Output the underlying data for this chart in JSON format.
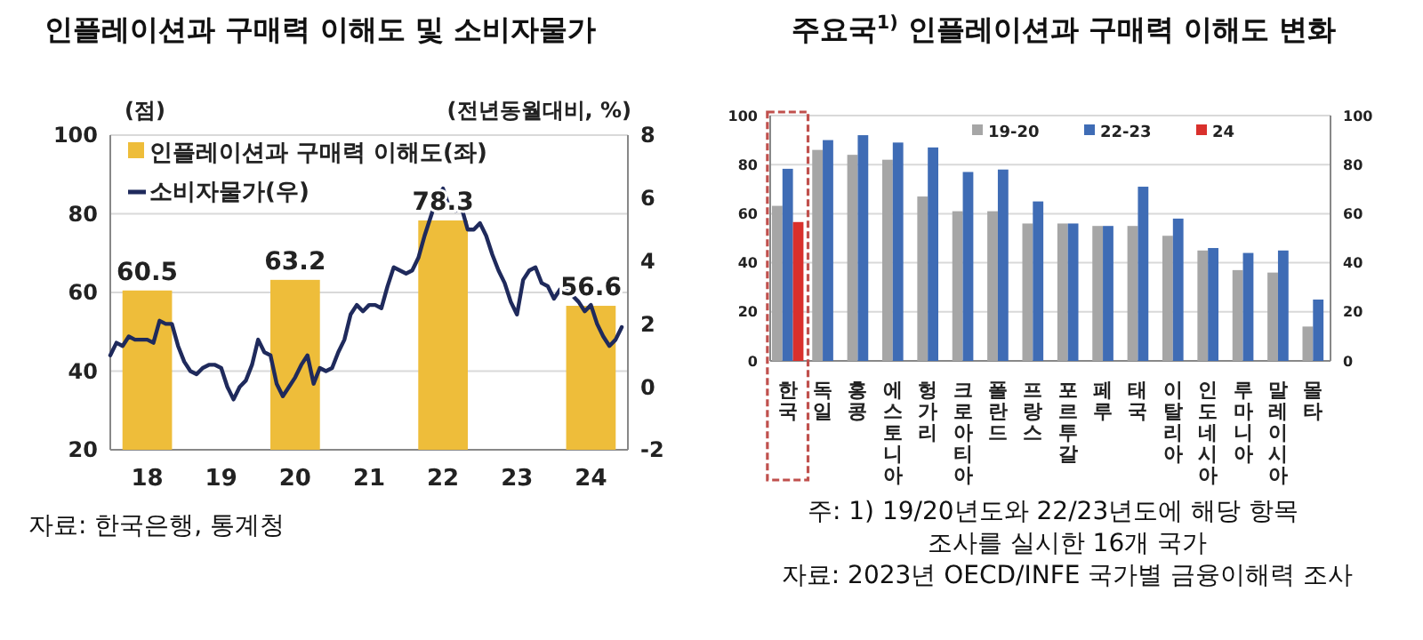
{
  "chart_data": [
    {
      "type": "bar",
      "title": "인플레이션과 구매력 이해도 및 소비자물가",
      "ylabel": "(점)",
      "y2label": "(전년동월대비, %)",
      "xlim": [
        "2018-01",
        "2025-01"
      ],
      "xticks": [
        {
          "value": "2018-07",
          "label": "18"
        },
        {
          "value": "2019-07",
          "label": "19"
        },
        {
          "value": "2020-07",
          "label": "20"
        },
        {
          "value": "2021-07",
          "label": "21"
        },
        {
          "value": "2022-07",
          "label": "22"
        },
        {
          "value": "2023-07",
          "label": "23"
        },
        {
          "value": "2024-07",
          "label": "24"
        }
      ],
      "ylim": [
        20,
        100
      ],
      "yticks": [
        20,
        40,
        60,
        80,
        100
      ],
      "y2lim": [
        -2,
        8
      ],
      "y2ticks": [
        -2,
        0,
        2,
        4,
        6,
        8
      ],
      "grid": "y",
      "legend": "top left",
      "series": [
        {
          "name": "인플레이션과 구매력 이해도(좌)",
          "type": "bar",
          "color": "#eebd3a",
          "x": [
            "2018-07",
            "2020-07",
            "2022-07",
            "2024-07"
          ],
          "values": [
            60.5,
            63.2,
            78.3,
            56.6
          ],
          "value_labels": [
            "60.5",
            "63.2",
            "78.3",
            "56.6"
          ]
        },
        {
          "name": "소비자물가(우)",
          "type": "line",
          "axis": "y2",
          "color": "#1f2a5c",
          "x": [
            "2018-01",
            "2018-02",
            "2018-03",
            "2018-04",
            "2018-05",
            "2018-06",
            "2018-07",
            "2018-08",
            "2018-09",
            "2018-10",
            "2018-11",
            "2018-12",
            "2019-01",
            "2019-02",
            "2019-03",
            "2019-04",
            "2019-05",
            "2019-06",
            "2019-07",
            "2019-08",
            "2019-09",
            "2019-10",
            "2019-11",
            "2019-12",
            "2020-01",
            "2020-02",
            "2020-03",
            "2020-04",
            "2020-05",
            "2020-06",
            "2020-07",
            "2020-08",
            "2020-09",
            "2020-10",
            "2020-11",
            "2020-12",
            "2021-01",
            "2021-02",
            "2021-03",
            "2021-04",
            "2021-05",
            "2021-06",
            "2021-07",
            "2021-08",
            "2021-09",
            "2021-10",
            "2021-11",
            "2021-12",
            "2022-01",
            "2022-02",
            "2022-03",
            "2022-04",
            "2022-05",
            "2022-06",
            "2022-07",
            "2022-08",
            "2022-09",
            "2022-10",
            "2022-11",
            "2022-12",
            "2023-01",
            "2023-02",
            "2023-03",
            "2023-04",
            "2023-05",
            "2023-06",
            "2023-07",
            "2023-08",
            "2023-09",
            "2023-10",
            "2023-11",
            "2023-12",
            "2024-01",
            "2024-02",
            "2024-03",
            "2024-04",
            "2024-05",
            "2024-06",
            "2024-07",
            "2024-08",
            "2024-09",
            "2024-10",
            "2024-11",
            "2024-12"
          ],
          "values": [
            1.0,
            1.4,
            1.3,
            1.6,
            1.5,
            1.5,
            1.5,
            1.4,
            2.1,
            2.0,
            2.0,
            1.3,
            0.8,
            0.5,
            0.4,
            0.6,
            0.7,
            0.7,
            0.6,
            0.0,
            -0.4,
            0.0,
            0.2,
            0.7,
            1.5,
            1.1,
            1.0,
            0.1,
            -0.3,
            0.0,
            0.3,
            0.7,
            1.0,
            0.1,
            0.6,
            0.5,
            0.6,
            1.1,
            1.5,
            2.3,
            2.6,
            2.4,
            2.6,
            2.6,
            2.5,
            3.2,
            3.8,
            3.7,
            3.6,
            3.7,
            4.1,
            4.8,
            5.4,
            6.0,
            6.3,
            5.7,
            5.6,
            5.7,
            5.0,
            5.0,
            5.2,
            4.8,
            4.2,
            3.7,
            3.3,
            2.7,
            2.3,
            3.4,
            3.7,
            3.8,
            3.3,
            3.2,
            2.8,
            3.1,
            3.1,
            2.9,
            2.7,
            2.4,
            2.6,
            2.0,
            1.6,
            1.3,
            1.5,
            1.9
          ]
        }
      ],
      "annotations": [
        "자료: 한국은행, 통계청"
      ]
    },
    {
      "type": "bar",
      "title": "주요국$^{1)}$ 인플레이션과 구매력 이해도 변화",
      "categories": [
        "한국",
        "독일",
        "홍콩",
        "에스토니아",
        "헝가리",
        "크로아티아",
        "폴란드",
        "프랑스",
        "포르투갈",
        "페루",
        "태국",
        "이탈리아",
        "인도네시아",
        "루마니아",
        "말레이시아",
        "몰타"
      ],
      "ylim": [
        0,
        100
      ],
      "yticks": [
        0,
        20,
        40,
        60,
        80,
        100
      ],
      "y2lim": [
        0,
        100
      ],
      "y2ticks": [
        0,
        20,
        40,
        60,
        80,
        100
      ],
      "grid": "y",
      "legend": "top",
      "series": [
        {
          "name": "19-20",
          "color": "#a6a6a6",
          "values": [
            63.2,
            86,
            84,
            82,
            67,
            61,
            61,
            56,
            56,
            55,
            55,
            51,
            45,
            37,
            36,
            14
          ]
        },
        {
          "name": "22-23",
          "color": "#3f6cb5",
          "values": [
            78.3,
            90,
            92,
            89,
            87,
            77,
            78,
            65,
            56,
            55,
            71,
            58,
            46,
            44,
            45,
            25
          ]
        },
        {
          "name": "24",
          "color": "#d9302c",
          "values": [
            56.6,
            null,
            null,
            null,
            null,
            null,
            null,
            null,
            null,
            null,
            null,
            null,
            null,
            null,
            null,
            null
          ]
        }
      ],
      "annotations": [
        "주: 1) 19/20년도와 22/23년도에 해당 항목",
        "조사를 실시한 16개 국가",
        "자료: 2023년 OECD/INFE 국가별 금융이해력 조사"
      ]
    }
  ]
}
